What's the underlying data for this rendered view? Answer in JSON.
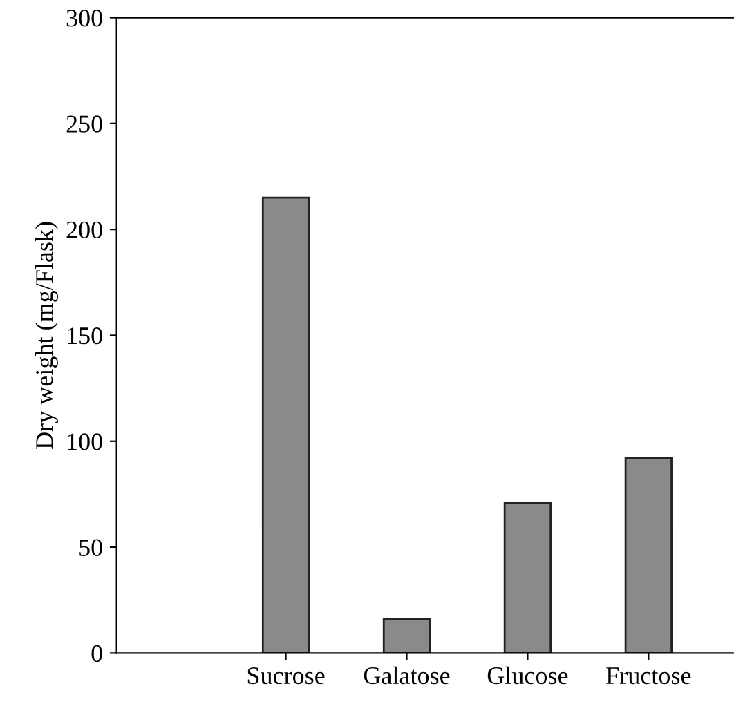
{
  "chart_data": {
    "type": "bar",
    "ylabel": "Dry weight (mg/Flask)",
    "categories": [
      "Sucrose",
      "Galatose",
      "Glucose",
      "Fructose"
    ],
    "values": [
      215,
      16,
      71,
      92
    ],
    "color": "#8a8a8a",
    "ylim": [
      0,
      300
    ],
    "yticks": [
      0,
      50,
      100,
      150,
      200,
      250,
      300
    ],
    "grid": false
  }
}
